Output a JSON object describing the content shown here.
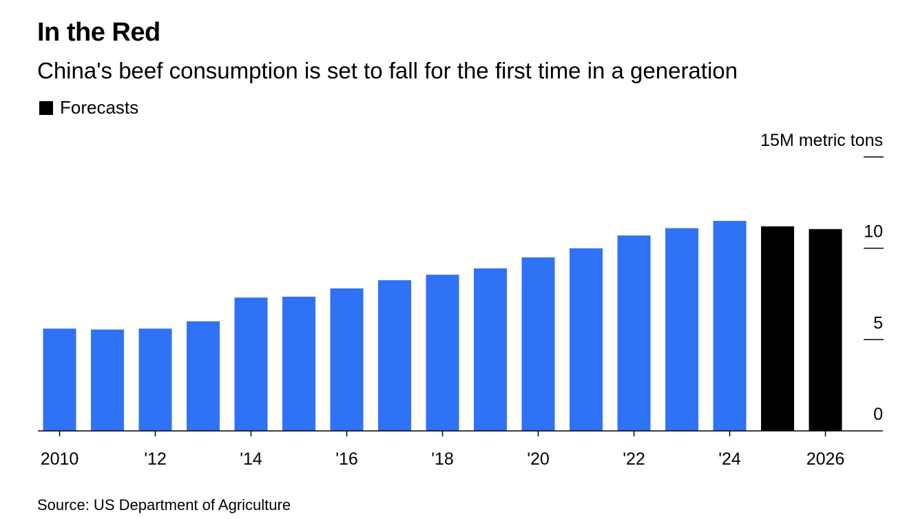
{
  "header": {
    "title": "In the Red",
    "subtitle": "China's beef consumption is set to fall for the first time in a generation"
  },
  "legend": {
    "label": "Forecasts",
    "color": "#000000"
  },
  "footer": {
    "source": "Source: US Department of Agriculture"
  },
  "colors": {
    "actual": "#2f72f5",
    "forecast": "#000000"
  },
  "chart_data": {
    "type": "bar",
    "title": "In the Red",
    "subtitle": "China's beef consumption is set to fall for the first time in a generation",
    "unit_label": "15M metric tons",
    "categories": [
      "2010",
      "2011",
      "2012",
      "2013",
      "2014",
      "2015",
      "2016",
      "2017",
      "2018",
      "2019",
      "2020",
      "2021",
      "2022",
      "2023",
      "2024",
      "2025",
      "2026"
    ],
    "values": [
      5.6,
      5.55,
      5.6,
      6.0,
      7.3,
      7.35,
      7.8,
      8.25,
      8.55,
      8.9,
      9.5,
      10.0,
      10.7,
      11.1,
      11.5,
      11.2,
      11.05
    ],
    "forecast": [
      false,
      false,
      false,
      false,
      false,
      false,
      false,
      false,
      false,
      false,
      false,
      false,
      false,
      false,
      false,
      true,
      true
    ],
    "x_tick_labels": [
      {
        "category": "2010",
        "label": "2010"
      },
      {
        "category": "2012",
        "label": "'12"
      },
      {
        "category": "2014",
        "label": "'14"
      },
      {
        "category": "2016",
        "label": "'16"
      },
      {
        "category": "2018",
        "label": "'18"
      },
      {
        "category": "2020",
        "label": "'20"
      },
      {
        "category": "2022",
        "label": "'22"
      },
      {
        "category": "2024",
        "label": "'24"
      },
      {
        "category": "2026",
        "label": "2026"
      }
    ],
    "y_ticks": [
      {
        "value": 0,
        "label": "0"
      },
      {
        "value": 5,
        "label": "5"
      },
      {
        "value": 10,
        "label": "10"
      },
      {
        "value": 15,
        "label": "15M metric tons"
      }
    ],
    "ylim": [
      0,
      15
    ],
    "y_axis_position": "right",
    "grid": false,
    "legend_position": "top-left"
  }
}
